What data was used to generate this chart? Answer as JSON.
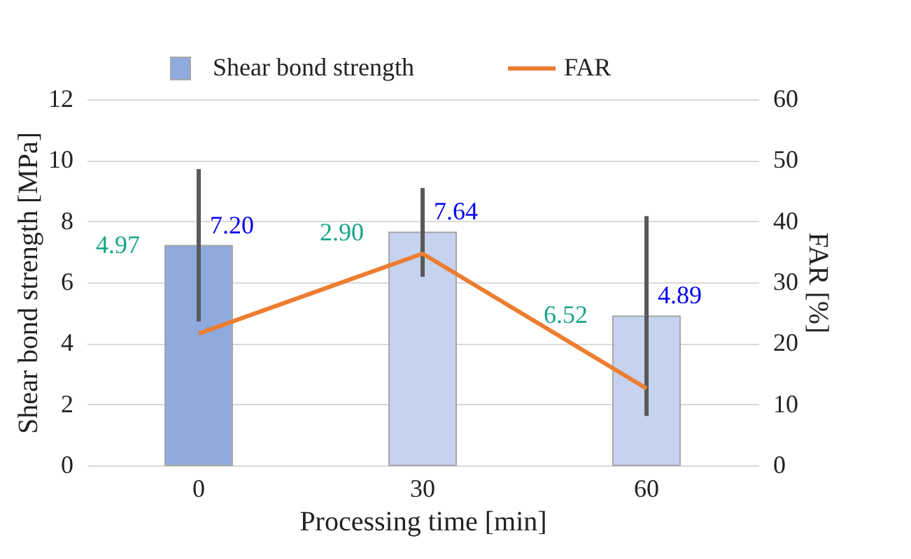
{
  "chart_data": {
    "type": "bar",
    "xlabel": "Processing time [min]",
    "ylabel": "Shear bond strength [MPa]",
    "y2label": "FAR [%]",
    "categories": [
      "0",
      "30",
      "60"
    ],
    "series": [
      {
        "name": "Shear bond strength",
        "color": "#8faadc",
        "colors": [
          "#8faadc",
          "#c5d3ee",
          "#c5d3ee"
        ],
        "values": [
          7.2,
          7.64,
          4.89
        ],
        "value_labels": [
          "7.20",
          "7.64",
          "4.89"
        ],
        "errors": [
          [
            4.72,
            9.71
          ],
          [
            6.18,
            9.09
          ],
          [
            1.62,
            8.17
          ]
        ]
      },
      {
        "name": "FAR",
        "type": "line",
        "axis": "y2",
        "color": "#ed7d31",
        "values": [
          21.6,
          34.7,
          12.6
        ]
      }
    ],
    "annotations": [
      {
        "text": "4.97",
        "x": "0",
        "y": 7.2
      },
      {
        "text": "2.90",
        "x": "30",
        "y": 7.6
      },
      {
        "text": "6.52",
        "x": "60",
        "y": 4.9
      }
    ],
    "ylim": [
      0,
      12
    ],
    "yticks": [
      0,
      2,
      4,
      6,
      8,
      10,
      12
    ],
    "y2lim": [
      0,
      60
    ],
    "y2ticks": [
      0,
      10,
      20,
      30,
      40,
      50,
      60
    ],
    "grid": "y",
    "legend": "top"
  }
}
